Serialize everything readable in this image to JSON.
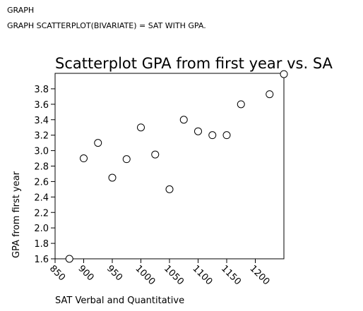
{
  "syntax": {
    "line1": "GRAPH",
    "line2": "GRAPH SCATTERPLOT(BIVARIATE) = SAT WITH GPA."
  },
  "chart_data": {
    "type": "scatter",
    "title": "Scatterplot GPA from first year vs. SA",
    "xlabel": "SAT Verbal and Quantitative",
    "ylabel": "GPA from first year",
    "xlim": [
      850,
      1250
    ],
    "ylim": [
      1.6,
      4.0
    ],
    "xticks": [
      850,
      900,
      950,
      1000,
      1050,
      1100,
      1150,
      1200
    ],
    "xtick_labels": [
      "850",
      "900",
      "950",
      "1000",
      "1050",
      "1100",
      "1150",
      "1200"
    ],
    "yticks": [
      1.6,
      1.8,
      2.0,
      2.2,
      2.4,
      2.6,
      2.8,
      3.0,
      3.2,
      3.4,
      3.6,
      3.8
    ],
    "ytick_labels": [
      "1.6",
      "1.8",
      "2.0",
      "2.2",
      "2.4",
      "2.6",
      "2.8",
      "3.0",
      "3.2",
      "3.4",
      "3.6",
      "3.8"
    ],
    "grid": false,
    "marker": "open-circle",
    "points": [
      {
        "x": 875,
        "y": 1.6
      },
      {
        "x": 900,
        "y": 2.9
      },
      {
        "x": 925,
        "y": 3.1
      },
      {
        "x": 950,
        "y": 2.65
      },
      {
        "x": 975,
        "y": 2.89
      },
      {
        "x": 1000,
        "y": 3.3
      },
      {
        "x": 1025,
        "y": 2.95
      },
      {
        "x": 1050,
        "y": 2.5
      },
      {
        "x": 1075,
        "y": 3.4
      },
      {
        "x": 1100,
        "y": 3.25
      },
      {
        "x": 1125,
        "y": 3.2
      },
      {
        "x": 1150,
        "y": 3.2
      },
      {
        "x": 1175,
        "y": 3.6
      },
      {
        "x": 1225,
        "y": 3.73
      },
      {
        "x": 1250,
        "y": 3.99
      }
    ]
  }
}
